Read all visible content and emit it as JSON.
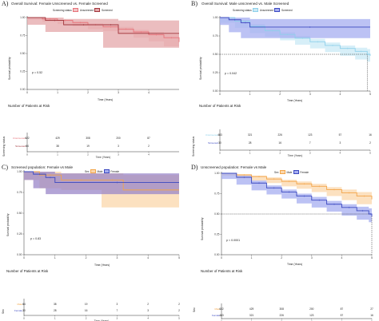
{
  "panels": [
    {
      "id": "A",
      "label": "A)",
      "title": "Overall Survival: Female Unscreened vs. Female Screened",
      "legend_title": "Screening status",
      "legend": [
        "Unscreened",
        "Screened"
      ],
      "ylabel": "Survival probability",
      "xlabel": "Time (Years)",
      "pvalue": "p = 0.52",
      "risk_title": "Number of Patients at Risk",
      "risk_ylabel": "Screening status",
      "risk_rows": [
        {
          "name": "Unscreened",
          "values": [
            "622",
            "429",
            "308",
            "200",
            "87"
          ]
        },
        {
          "name": "Screened",
          "values": [
            "64",
            "38",
            "19",
            "3",
            "2"
          ]
        }
      ]
    },
    {
      "id": "B",
      "label": "B)",
      "title": "Overall Survival: Male unscreened vs. Male Screened",
      "legend_title": "Screening status",
      "legend": [
        "Unscreened",
        "Screened"
      ],
      "ylabel": "Survival probability",
      "xlabel": "Time (Years)",
      "pvalue": "p = 0.042",
      "risk_title": "Number of Patients at Risk",
      "risk_ylabel": "Screening status",
      "risk_rows": [
        {
          "name": "Unscreened",
          "values": [
            "483",
            "321",
            "226",
            "123",
            "57",
            "16"
          ]
        },
        {
          "name": "Screened",
          "values": [
            "30",
            "28",
            "16",
            "7",
            "3",
            "2"
          ]
        }
      ]
    },
    {
      "id": "C",
      "label": "C)",
      "title": "Screened population: Female vs Male",
      "legend_title": "Sex",
      "legend": [
        "Male",
        "Female"
      ],
      "ylabel": "Survival probability",
      "xlabel": "Time (Years)",
      "pvalue": "p = 0.83",
      "risk_title": "Number of Patients at Risk",
      "risk_ylabel": "Sex",
      "risk_rows": [
        {
          "name": "Male",
          "values": [
            "64",
            "38",
            "19",
            "3",
            "2",
            "2"
          ]
        },
        {
          "name": "Female",
          "values": [
            "30",
            "28",
            "16",
            "7",
            "3",
            "2"
          ]
        }
      ]
    },
    {
      "id": "D",
      "label": "D)",
      "title": "Unscreened population: Female vs Male",
      "legend_title": "Sex",
      "legend": [
        "Male",
        "Female"
      ],
      "ylabel": "Survival probability",
      "xlabel": "Time (Years)",
      "pvalue": "p < 0.0001",
      "risk_title": "Number of Patients at Risk",
      "risk_ylabel": "Sex",
      "risk_rows": [
        {
          "name": "Male",
          "values": [
            "622",
            "429",
            "308",
            "200",
            "87",
            "27"
          ]
        },
        {
          "name": "Female",
          "values": [
            "483",
            "321",
            "226",
            "123",
            "57",
            "16"
          ]
        }
      ]
    }
  ],
  "colors": {
    "pink": "#e7737a",
    "pink_band": "#f3c2c4",
    "darkred": "#a0343b",
    "darkred_band": "#e4a7aa",
    "lightblue": "#8ed0ea",
    "lightblue_band": "#c9e9f6",
    "blue": "#3a48c0",
    "blue_band": "#a6aef0",
    "orange": "#f2a54a",
    "orange_band": "#fbd7ab",
    "purple_band": "#9a85c8"
  },
  "chart_data": [
    {
      "type": "line",
      "panel": "A",
      "xlim": [
        0,
        5
      ],
      "ylim": [
        0,
        1
      ],
      "xticks": [
        0,
        1,
        2,
        3,
        4
      ],
      "yticks": [
        "0.00",
        "0.25",
        "0.50",
        "0.75",
        "1.00"
      ],
      "series": [
        {
          "name": "Unscreened",
          "x": [
            0,
            0.5,
            1,
            1.5,
            2,
            2.5,
            3,
            3.5,
            4,
            4.5,
            5
          ],
          "y": [
            1,
            0.98,
            0.96,
            0.93,
            0.9,
            0.87,
            0.84,
            0.8,
            0.76,
            0.72,
            0.66
          ],
          "lower": [
            1,
            0.97,
            0.94,
            0.91,
            0.88,
            0.84,
            0.81,
            0.77,
            0.72,
            0.67,
            0.6
          ],
          "upper": [
            1,
            0.99,
            0.97,
            0.95,
            0.92,
            0.9,
            0.87,
            0.83,
            0.8,
            0.77,
            0.72
          ]
        },
        {
          "name": "Screened",
          "x": [
            0,
            0.6,
            1.2,
            2.5,
            3.0,
            5
          ],
          "y": [
            1,
            0.96,
            0.9,
            0.9,
            0.78,
            0.78
          ],
          "lower": [
            1,
            0.9,
            0.8,
            0.8,
            0.58,
            0.58
          ],
          "upper": [
            1,
            1,
            0.98,
            0.98,
            0.96,
            0.96
          ]
        }
      ]
    },
    {
      "type": "line",
      "panel": "B",
      "xlim": [
        0,
        5
      ],
      "ylim": [
        0,
        1
      ],
      "xticks": [
        0,
        1,
        2,
        3,
        4,
        5
      ],
      "yticks": [
        "0.00",
        "0.25",
        "0.50",
        "0.75",
        "1.00"
      ],
      "median_line": 0.5,
      "series": [
        {
          "name": "Unscreened",
          "x": [
            0,
            0.5,
            1,
            1.5,
            2,
            2.5,
            3,
            3.5,
            4,
            4.5,
            4.9,
            5
          ],
          "y": [
            1,
            0.95,
            0.88,
            0.82,
            0.77,
            0.72,
            0.67,
            0.62,
            0.58,
            0.54,
            0.5,
            0.48
          ],
          "lower": [
            1,
            0.93,
            0.86,
            0.79,
            0.74,
            0.69,
            0.63,
            0.58,
            0.53,
            0.48,
            0.43,
            0.4
          ],
          "upper": [
            1,
            0.97,
            0.91,
            0.85,
            0.8,
            0.75,
            0.71,
            0.66,
            0.62,
            0.59,
            0.57,
            0.55
          ]
        },
        {
          "name": "Screened",
          "x": [
            0,
            0.3,
            0.7,
            1.0,
            5
          ],
          "y": [
            1,
            0.97,
            0.93,
            0.87,
            0.87
          ],
          "lower": [
            1,
            0.9,
            0.8,
            0.72,
            0.72
          ],
          "upper": [
            1,
            1,
            1,
            0.98,
            0.98
          ]
        }
      ]
    },
    {
      "type": "line",
      "panel": "C",
      "xlim": [
        0,
        5
      ],
      "ylim": [
        0,
        1
      ],
      "xticks": [
        0,
        1,
        2,
        3,
        4,
        5
      ],
      "yticks": [
        "0.00",
        "0.25",
        "0.50",
        "0.75",
        "1.00"
      ],
      "series": [
        {
          "name": "Male",
          "x": [
            0,
            0.5,
            1.2,
            2.5,
            3.2,
            5
          ],
          "y": [
            1,
            0.96,
            0.9,
            0.9,
            0.78,
            0.78
          ],
          "lower": [
            1,
            0.9,
            0.8,
            0.78,
            0.57,
            0.57
          ],
          "upper": [
            1,
            1,
            0.98,
            0.98,
            0.96,
            0.96
          ]
        },
        {
          "name": "Female",
          "x": [
            0,
            0.3,
            0.7,
            1.0,
            5
          ],
          "y": [
            1,
            0.97,
            0.93,
            0.87,
            0.87
          ],
          "lower": [
            1,
            0.9,
            0.8,
            0.73,
            0.73
          ],
          "upper": [
            1,
            1,
            1,
            0.98,
            0.98
          ]
        }
      ]
    },
    {
      "type": "line",
      "panel": "D",
      "xlim": [
        0,
        5
      ],
      "ylim": [
        0,
        1
      ],
      "xticks": [
        0,
        1,
        2,
        3,
        4,
        5
      ],
      "yticks": [
        "0.00",
        "0.25",
        "0.50",
        "0.75",
        "1.00"
      ],
      "median_line": 0.5,
      "series": [
        {
          "name": "Male",
          "x": [
            0,
            0.5,
            1,
            1.5,
            2,
            2.5,
            3,
            3.5,
            4,
            4.5,
            5
          ],
          "y": [
            1,
            0.98,
            0.96,
            0.93,
            0.9,
            0.87,
            0.84,
            0.8,
            0.76,
            0.72,
            0.68
          ],
          "lower": [
            1,
            0.97,
            0.94,
            0.91,
            0.88,
            0.84,
            0.81,
            0.77,
            0.72,
            0.67,
            0.62
          ],
          "upper": [
            1,
            0.99,
            0.97,
            0.95,
            0.92,
            0.9,
            0.87,
            0.83,
            0.8,
            0.77,
            0.73
          ]
        },
        {
          "name": "Female",
          "x": [
            0,
            0.5,
            1,
            1.5,
            2,
            2.5,
            3,
            3.5,
            4,
            4.5,
            4.9,
            5
          ],
          "y": [
            1,
            0.95,
            0.88,
            0.82,
            0.77,
            0.72,
            0.67,
            0.62,
            0.58,
            0.54,
            0.5,
            0.47
          ],
          "lower": [
            1,
            0.93,
            0.86,
            0.79,
            0.74,
            0.69,
            0.63,
            0.58,
            0.53,
            0.48,
            0.43,
            0.4
          ],
          "upper": [
            1,
            0.97,
            0.91,
            0.85,
            0.8,
            0.75,
            0.71,
            0.66,
            0.62,
            0.59,
            0.57,
            0.55
          ]
        }
      ]
    }
  ]
}
